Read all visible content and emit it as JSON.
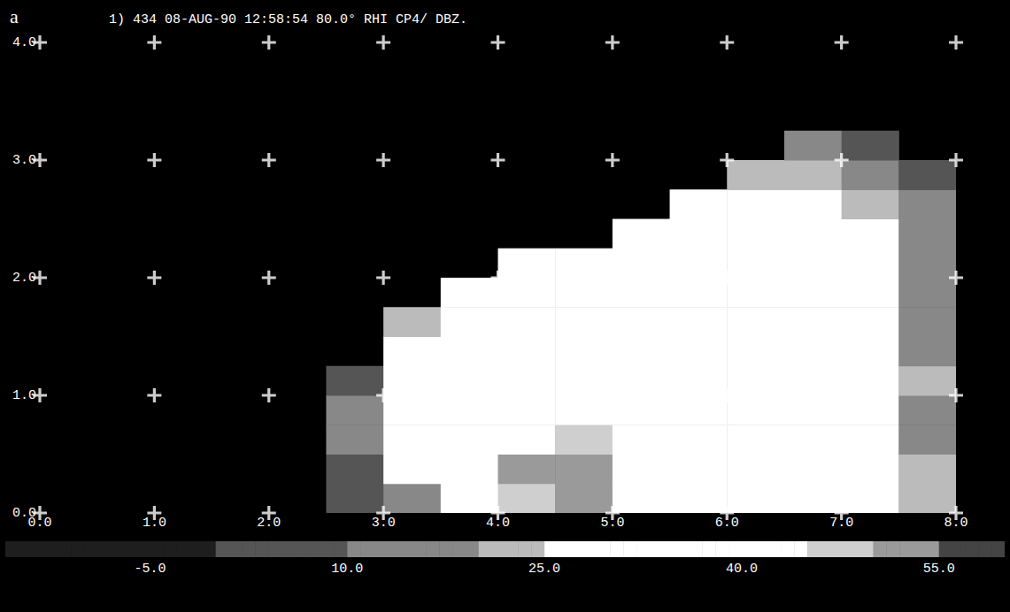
{
  "chart_data": {
    "type": "heatmap",
    "panel_label": "a",
    "title": "1) 434 08-AUG-90 12:58:54 80.0° RHI CP4/ DBZ.",
    "grid": true,
    "x": [
      2.75,
      3.25,
      3.75,
      4.25,
      4.75,
      5.25,
      5.75,
      6.25,
      6.75,
      7.25,
      7.75
    ],
    "y": [
      0.125,
      0.375,
      0.625,
      0.875,
      1.125,
      1.375,
      1.625,
      1.875,
      2.125,
      2.375,
      2.625,
      2.875,
      3.125
    ],
    "values": [
      [
        5,
        5,
        10,
        10,
        5,
        null,
        null,
        null,
        null,
        null,
        null,
        null,
        null
      ],
      [
        15,
        25,
        30,
        30,
        30,
        25,
        20,
        null,
        null,
        null,
        null,
        null,
        null
      ],
      [
        25,
        35,
        35,
        35,
        35,
        35,
        35,
        30,
        null,
        null,
        null,
        null,
        null
      ],
      [
        45,
        50,
        40,
        35,
        35,
        35,
        35,
        35,
        30,
        null,
        null,
        null,
        null
      ],
      [
        50,
        50,
        45,
        40,
        35,
        35,
        35,
        30,
        30,
        null,
        null,
        null,
        null
      ],
      [
        40,
        40,
        40,
        40,
        35,
        35,
        35,
        35,
        30,
        30,
        null,
        null,
        null
      ],
      [
        35,
        35,
        35,
        35,
        35,
        40,
        35,
        35,
        35,
        30,
        25,
        null,
        null
      ],
      [
        35,
        35,
        35,
        35,
        35,
        35,
        35,
        35,
        30,
        30,
        25,
        20,
        null
      ],
      [
        35,
        35,
        35,
        35,
        35,
        35,
        30,
        30,
        30,
        30,
        25,
        20,
        10
      ],
      [
        40,
        40,
        35,
        35,
        35,
        30,
        30,
        30,
        25,
        25,
        20,
        15,
        5
      ],
      [
        20,
        20,
        15,
        15,
        20,
        15,
        15,
        15,
        10,
        10,
        10,
        5,
        null
      ]
    ],
    "xlim": [
      0,
      8
    ],
    "ylim": [
      0,
      4
    ],
    "xticks": [
      {
        "value": 0,
        "label": "0.0"
      },
      {
        "value": 1,
        "label": "1.0"
      },
      {
        "value": 2,
        "label": "2.0"
      },
      {
        "value": 3,
        "label": "3.0"
      },
      {
        "value": 4,
        "label": "4.0"
      },
      {
        "value": 5,
        "label": "5.0"
      },
      {
        "value": 6,
        "label": "6.0"
      },
      {
        "value": 7,
        "label": "7.0"
      },
      {
        "value": 8,
        "label": "8.0"
      }
    ],
    "yticks": [
      {
        "value": 0,
        "label": "0.0"
      },
      {
        "value": 1,
        "label": "1.0"
      },
      {
        "value": 2,
        "label": "2.0"
      },
      {
        "value": 3,
        "label": "3.0"
      },
      {
        "value": 4,
        "label": "4.0"
      }
    ],
    "colorbar": {
      "range": [
        -16,
        60
      ],
      "ticks": [
        {
          "value": -5,
          "label": "-5.0"
        },
        {
          "value": 10,
          "label": "10.0"
        },
        {
          "value": 25,
          "label": "25.0"
        },
        {
          "value": 40,
          "label": "40.0"
        },
        {
          "value": 55,
          "label": "55.0"
        }
      ]
    }
  }
}
